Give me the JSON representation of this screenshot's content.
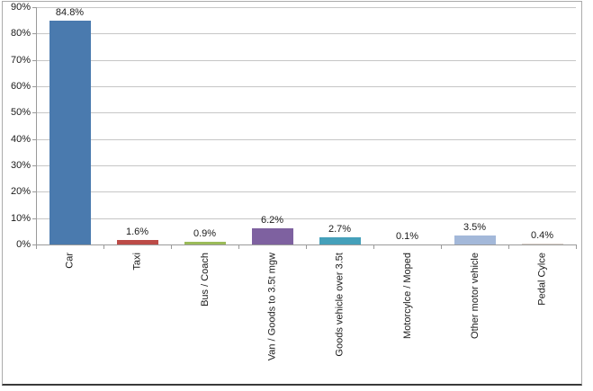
{
  "chart_data": {
    "type": "bar",
    "title": "",
    "xlabel": "",
    "ylabel": "",
    "categories": [
      "Car",
      "Taxi",
      "Bus / Coach",
      "Van / Goods to 3.5t mgw",
      "Goods vehicle over 3.5t",
      "Motorcylce / Moped",
      "Other motor vehicle",
      "Pedal Cylce"
    ],
    "values": [
      84.8,
      1.6,
      0.9,
      6.2,
      2.7,
      0.1,
      3.5,
      0.4
    ],
    "data_labels": [
      "84.8%",
      "1.6%",
      "0.9%",
      "6.2%",
      "2.7%",
      "0.1%",
      "3.5%",
      "0.4%"
    ],
    "bar_colors": [
      "#4A7AAE",
      "#BC4B47",
      "#9BBB59",
      "#7E61A0",
      "#45A0BA",
      "#F79646",
      "#A3B8D9",
      "#D9CFC7"
    ],
    "ylim": [
      0,
      90
    ],
    "ytick_values": [
      0,
      10,
      20,
      30,
      40,
      50,
      60,
      70,
      80,
      90
    ],
    "ytick_labels": [
      "0%",
      "10%",
      "20%",
      "30%",
      "40%",
      "50%",
      "60%",
      "70%",
      "80%",
      "90%"
    ],
    "grid": "horizontal",
    "legend": "none"
  },
  "colors": {
    "gridline": "#C6C6C6",
    "axis": "#9A9A9A",
    "frame_border": "#ABABAB",
    "frame_bottom": "#3A3A3A",
    "background": "#FFFFFF",
    "label_text": "#1A1A1A"
  }
}
